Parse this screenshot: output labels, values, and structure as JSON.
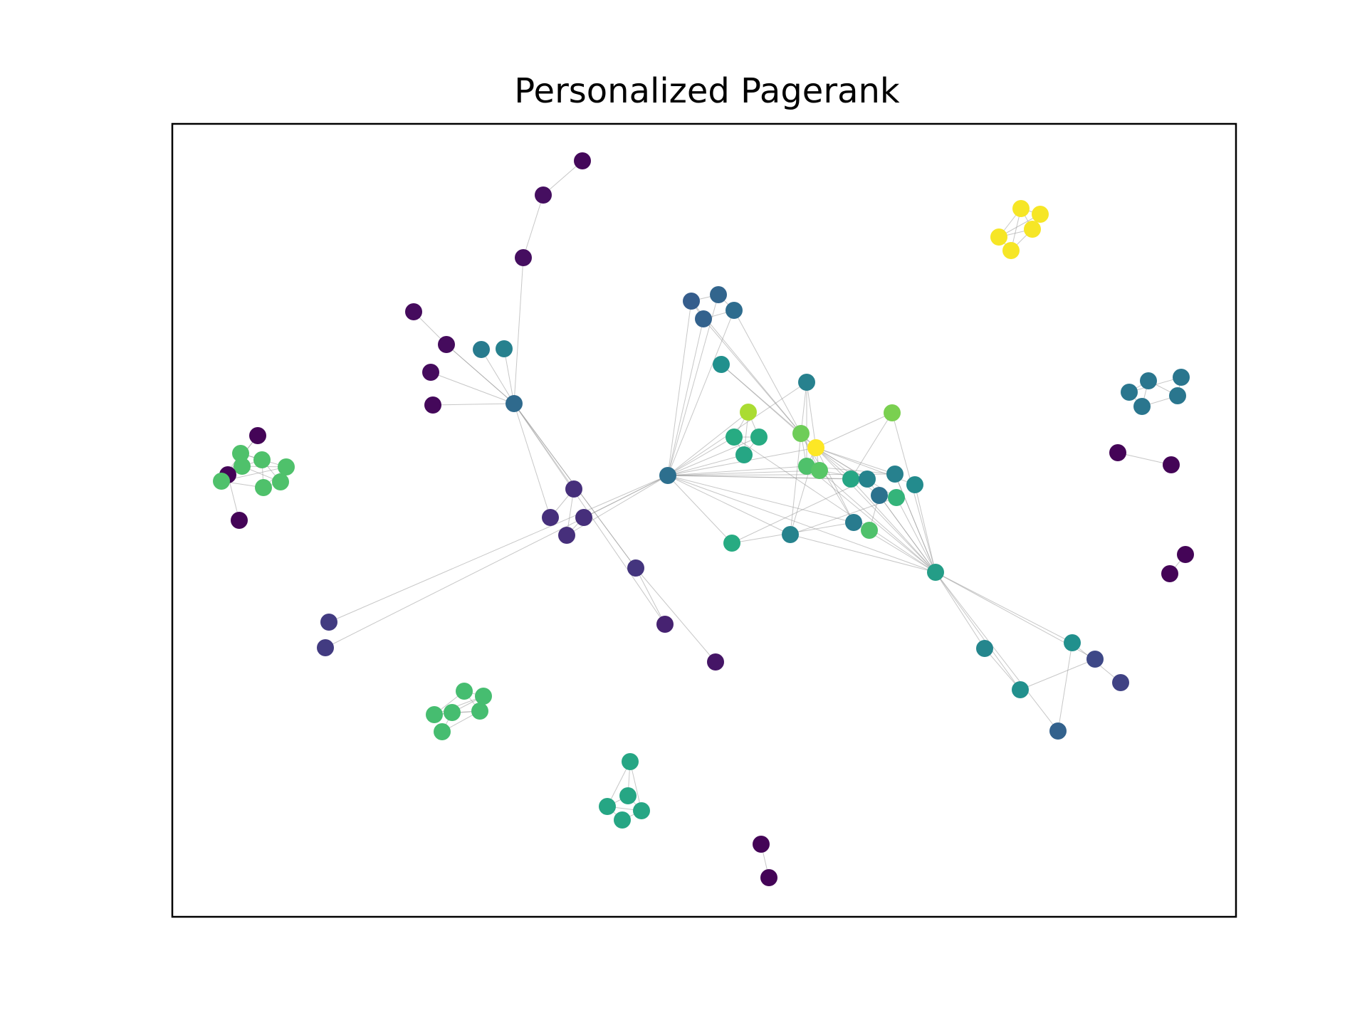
{
  "chart_data": {
    "type": "network",
    "title": "Personalized Pagerank",
    "colormap": "viridis",
    "show_axes_ticks": false,
    "edge_color": "#999999",
    "nodes": [
      {
        "id": "n1",
        "rank": 0.02
      },
      {
        "id": "n2",
        "rank": 0.04
      },
      {
        "id": "n3",
        "rank": 0.04
      },
      {
        "id": "n4",
        "rank": 0.03
      },
      {
        "id": "n5",
        "rank": 0.03
      },
      {
        "id": "n6",
        "rank": 0.03
      },
      {
        "id": "n7",
        "rank": 0.02
      },
      {
        "id": "n8",
        "rank": 0.35
      },
      {
        "id": "n9",
        "rank": 0.42
      },
      {
        "id": "n10",
        "rank": 0.44
      },
      {
        "id": "n11",
        "rank": 0.14
      },
      {
        "id": "n12",
        "rank": 0.14
      },
      {
        "id": "n13",
        "rank": 0.14
      },
      {
        "id": "n14",
        "rank": 0.14
      },
      {
        "id": "n15",
        "rank": 0.16
      },
      {
        "id": "n16",
        "rank": 0.1
      },
      {
        "id": "n17",
        "rank": 0.06
      },
      {
        "id": "n18",
        "rank": 0.15
      },
      {
        "id": "n19",
        "rank": 0.16
      },
      {
        "id": "n20",
        "rank": 0.37
      },
      {
        "id": "n21",
        "rank": 0.01
      },
      {
        "id": "n22",
        "rank": 0.01
      },
      {
        "id": "n23",
        "rank": 0.3
      },
      {
        "id": "n24",
        "rank": 0.33
      },
      {
        "id": "n25",
        "rank": 0.32
      },
      {
        "id": "n26",
        "rank": 0.36
      },
      {
        "id": "n27",
        "rank": 0.5
      },
      {
        "id": "n28",
        "rank": 0.44
      },
      {
        "id": "n29",
        "rank": 0.88
      },
      {
        "id": "n30",
        "rank": 0.62
      },
      {
        "id": "n31",
        "rank": 0.62
      },
      {
        "id": "n32",
        "rank": 0.6
      },
      {
        "id": "n33",
        "rank": 0.78
      },
      {
        "id": "n34",
        "rank": 1.0
      },
      {
        "id": "n35",
        "rank": 0.72
      },
      {
        "id": "n36",
        "rank": 0.74
      },
      {
        "id": "n37",
        "rank": 0.8
      },
      {
        "id": "n38",
        "rank": 0.62
      },
      {
        "id": "n39",
        "rank": 0.45
      },
      {
        "id": "n40",
        "rank": 0.42
      },
      {
        "id": "n41",
        "rank": 0.6
      },
      {
        "id": "n42",
        "rank": 0.45
      },
      {
        "id": "n43",
        "rank": 0.44
      },
      {
        "id": "n44",
        "rank": 0.38
      },
      {
        "id": "n45",
        "rank": 0.66
      },
      {
        "id": "n46",
        "rank": 0.48
      },
      {
        "id": "n47",
        "rank": 0.56
      },
      {
        "id": "n48",
        "rank": 0.72
      },
      {
        "id": "n49",
        "rank": 0.46
      },
      {
        "id": "n50",
        "rank": 0.5
      },
      {
        "id": "n51",
        "rank": 0.32
      },
      {
        "id": "n52",
        "rank": 0.5
      },
      {
        "id": "n53",
        "rank": 0.22
      },
      {
        "id": "n54",
        "rank": 0.52
      },
      {
        "id": "n55",
        "rank": 0.2
      },
      {
        "id": "n56",
        "rank": 0.06
      },
      {
        "id": "n57",
        "rank": 0.12
      },
      {
        "id": "n58",
        "rank": 0.12
      },
      {
        "id": "n59",
        "rank": 0.12
      },
      {
        "id": "n60",
        "rank": 0.12
      },
      {
        "id": "n61",
        "rank": 0.99
      },
      {
        "id": "n62",
        "rank": 0.99
      },
      {
        "id": "n63",
        "rank": 0.99
      },
      {
        "id": "n64",
        "rank": 0.99
      },
      {
        "id": "n65",
        "rank": 0.99
      },
      {
        "id": "n66",
        "rank": 0.4
      },
      {
        "id": "n67",
        "rank": 0.4
      },
      {
        "id": "n68",
        "rank": 0.4
      },
      {
        "id": "n69",
        "rank": 0.4
      },
      {
        "id": "n70",
        "rank": 0.4
      },
      {
        "id": "n71",
        "rank": 0.01
      },
      {
        "id": "n72",
        "rank": 0.01
      },
      {
        "id": "n73",
        "rank": 0.01
      },
      {
        "id": "n74",
        "rank": 0.01
      },
      {
        "id": "n75",
        "rank": 0.72
      },
      {
        "id": "n76",
        "rank": 0.72
      },
      {
        "id": "n77",
        "rank": 0.72
      },
      {
        "id": "n78",
        "rank": 0.72
      },
      {
        "id": "n79",
        "rank": 0.72
      },
      {
        "id": "n80",
        "rank": 0.72
      },
      {
        "id": "n81",
        "rank": 0.01
      },
      {
        "id": "n82",
        "rank": 0.01
      },
      {
        "id": "n83",
        "rank": 0.01
      },
      {
        "id": "n84",
        "rank": 0.72
      },
      {
        "id": "n85",
        "rank": 0.7
      },
      {
        "id": "n86",
        "rank": 0.7
      },
      {
        "id": "n87",
        "rank": 0.7
      },
      {
        "id": "n88",
        "rank": 0.7
      },
      {
        "id": "n89",
        "rank": 0.7
      },
      {
        "id": "n90",
        "rank": 0.7
      },
      {
        "id": "n91",
        "rank": 0.6
      },
      {
        "id": "n92",
        "rank": 0.6
      },
      {
        "id": "n93",
        "rank": 0.6
      },
      {
        "id": "n94",
        "rank": 0.6
      },
      {
        "id": "n95",
        "rank": 0.6
      },
      {
        "id": "n96",
        "rank": 0.01
      },
      {
        "id": "n97",
        "rank": 0.01
      },
      {
        "id": "n98",
        "rank": 0.18
      },
      {
        "id": "n99",
        "rank": 0.18
      }
    ],
    "edges": [
      [
        "n1",
        "n2"
      ],
      [
        "n2",
        "n3"
      ],
      [
        "n3",
        "n8"
      ],
      [
        "n4",
        "n5"
      ],
      [
        "n5",
        "n8"
      ],
      [
        "n6",
        "n8"
      ],
      [
        "n7",
        "n8"
      ],
      [
        "n5",
        "n8"
      ],
      [
        "n8",
        "n9"
      ],
      [
        "n8",
        "n10"
      ],
      [
        "n8",
        "n11"
      ],
      [
        "n8",
        "n12"
      ],
      [
        "n8",
        "n15"
      ],
      [
        "n11",
        "n12"
      ],
      [
        "n11",
        "n13"
      ],
      [
        "n13",
        "n14"
      ],
      [
        "n8",
        "n15"
      ],
      [
        "n15",
        "n16"
      ],
      [
        "n15",
        "n17"
      ],
      [
        "n8",
        "n16"
      ],
      [
        "n20",
        "n13"
      ],
      [
        "n20",
        "n14"
      ],
      [
        "n20",
        "n18"
      ],
      [
        "n20",
        "n19"
      ],
      [
        "n20",
        "n98"
      ],
      [
        "n20",
        "n99"
      ],
      [
        "n20",
        "n23"
      ],
      [
        "n20",
        "n24"
      ],
      [
        "n20",
        "n25"
      ],
      [
        "n20",
        "n26"
      ],
      [
        "n20",
        "n28"
      ],
      [
        "n20",
        "n29"
      ],
      [
        "n20",
        "n30"
      ],
      [
        "n20",
        "n31"
      ],
      [
        "n20",
        "n32"
      ],
      [
        "n20",
        "n34"
      ],
      [
        "n20",
        "n35"
      ],
      [
        "n20",
        "n36"
      ],
      [
        "n20",
        "n38"
      ],
      [
        "n20",
        "n39"
      ],
      [
        "n20",
        "n40"
      ],
      [
        "n20",
        "n41"
      ],
      [
        "n20",
        "n42"
      ],
      [
        "n20",
        "n43"
      ],
      [
        "n20",
        "n47"
      ],
      [
        "n23",
        "n24"
      ],
      [
        "n23",
        "n25"
      ],
      [
        "n24",
        "n26"
      ],
      [
        "n25",
        "n26"
      ],
      [
        "n23",
        "n33"
      ],
      [
        "n25",
        "n33"
      ],
      [
        "n26",
        "n33"
      ],
      [
        "n27",
        "n33"
      ],
      [
        "n27",
        "n34"
      ],
      [
        "n28",
        "n33"
      ],
      [
        "n28",
        "n34"
      ],
      [
        "n29",
        "n30"
      ],
      [
        "n29",
        "n31"
      ],
      [
        "n29",
        "n32"
      ],
      [
        "n30",
        "n31"
      ],
      [
        "n30",
        "n32"
      ],
      [
        "n31",
        "n32"
      ],
      [
        "n33",
        "n34"
      ],
      [
        "n33",
        "n35"
      ],
      [
        "n34",
        "n35"
      ],
      [
        "n34",
        "n37"
      ],
      [
        "n33",
        "n36"
      ],
      [
        "n34",
        "n36"
      ],
      [
        "n33",
        "n39"
      ],
      [
        "n34",
        "n39"
      ],
      [
        "n34",
        "n40"
      ],
      [
        "n33",
        "n40"
      ],
      [
        "n34",
        "n41"
      ],
      [
        "n37",
        "n41"
      ],
      [
        "n34",
        "n42"
      ],
      [
        "n34",
        "n44"
      ],
      [
        "n34",
        "n45"
      ],
      [
        "n34",
        "n46"
      ],
      [
        "n34",
        "n47"
      ],
      [
        "n35",
        "n47"
      ],
      [
        "n37",
        "n47"
      ],
      [
        "n36",
        "n47"
      ],
      [
        "n39",
        "n47"
      ],
      [
        "n40",
        "n47"
      ],
      [
        "n41",
        "n47"
      ],
      [
        "n42",
        "n47"
      ],
      [
        "n43",
        "n47"
      ],
      [
        "n44",
        "n47"
      ],
      [
        "n45",
        "n47"
      ],
      [
        "n46",
        "n47"
      ],
      [
        "n38",
        "n42"
      ],
      [
        "n35",
        "n28"
      ],
      [
        "n47",
        "n49"
      ],
      [
        "n47",
        "n50"
      ],
      [
        "n47",
        "n51"
      ],
      [
        "n47",
        "n52"
      ],
      [
        "n47",
        "n53"
      ],
      [
        "n49",
        "n50"
      ],
      [
        "n50",
        "n53"
      ],
      [
        "n51",
        "n52"
      ],
      [
        "n52",
        "n55"
      ],
      [
        "n34",
        "n43"
      ],
      [
        "n30",
        "n47"
      ],
      [
        "n38",
        "n40"
      ],
      [
        "n35",
        "n43"
      ],
      [
        "n36",
        "n42"
      ],
      [
        "n39",
        "n45"
      ],
      [
        "n43",
        "n47"
      ],
      [
        "n48",
        "n44"
      ],
      [
        "n61",
        "n62"
      ],
      [
        "n61",
        "n63"
      ],
      [
        "n61",
        "n64"
      ],
      [
        "n61",
        "n65"
      ],
      [
        "n62",
        "n63"
      ],
      [
        "n62",
        "n64"
      ],
      [
        "n63",
        "n64"
      ],
      [
        "n63",
        "n65"
      ],
      [
        "n64",
        "n65"
      ],
      [
        "n66",
        "n67"
      ],
      [
        "n66",
        "n68"
      ],
      [
        "n67",
        "n69"
      ],
      [
        "n67",
        "n70"
      ],
      [
        "n68",
        "n69"
      ],
      [
        "n69",
        "n70"
      ],
      [
        "n66",
        "n70"
      ],
      [
        "n71",
        "n72"
      ],
      [
        "n73",
        "n74"
      ],
      [
        "n75",
        "n76"
      ],
      [
        "n75",
        "n77"
      ],
      [
        "n75",
        "n78"
      ],
      [
        "n76",
        "n77"
      ],
      [
        "n76",
        "n79"
      ],
      [
        "n77",
        "n78"
      ],
      [
        "n77",
        "n79"
      ],
      [
        "n78",
        "n79"
      ],
      [
        "n79",
        "n80"
      ],
      [
        "n76",
        "n80"
      ],
      [
        "n78",
        "n80"
      ],
      [
        "n81",
        "n82"
      ],
      [
        "n82",
        "n83"
      ],
      [
        "n84",
        "n75"
      ],
      [
        "n84",
        "n81"
      ],
      [
        "n84",
        "n80"
      ],
      [
        "n84",
        "n78"
      ],
      [
        "n82",
        "n84"
      ],
      [
        "n85",
        "n86"
      ],
      [
        "n85",
        "n87"
      ],
      [
        "n86",
        "n87"
      ],
      [
        "n86",
        "n88"
      ],
      [
        "n87",
        "n88"
      ],
      [
        "n87",
        "n89"
      ],
      [
        "n88",
        "n89"
      ],
      [
        "n88",
        "n90"
      ],
      [
        "n89",
        "n90"
      ],
      [
        "n85",
        "n89"
      ],
      [
        "n91",
        "n92"
      ],
      [
        "n91",
        "n93"
      ],
      [
        "n91",
        "n94"
      ],
      [
        "n92",
        "n93"
      ],
      [
        "n92",
        "n94"
      ],
      [
        "n93",
        "n94"
      ],
      [
        "n93",
        "n95"
      ],
      [
        "n94",
        "n95"
      ],
      [
        "n96",
        "n97"
      ]
    ]
  }
}
